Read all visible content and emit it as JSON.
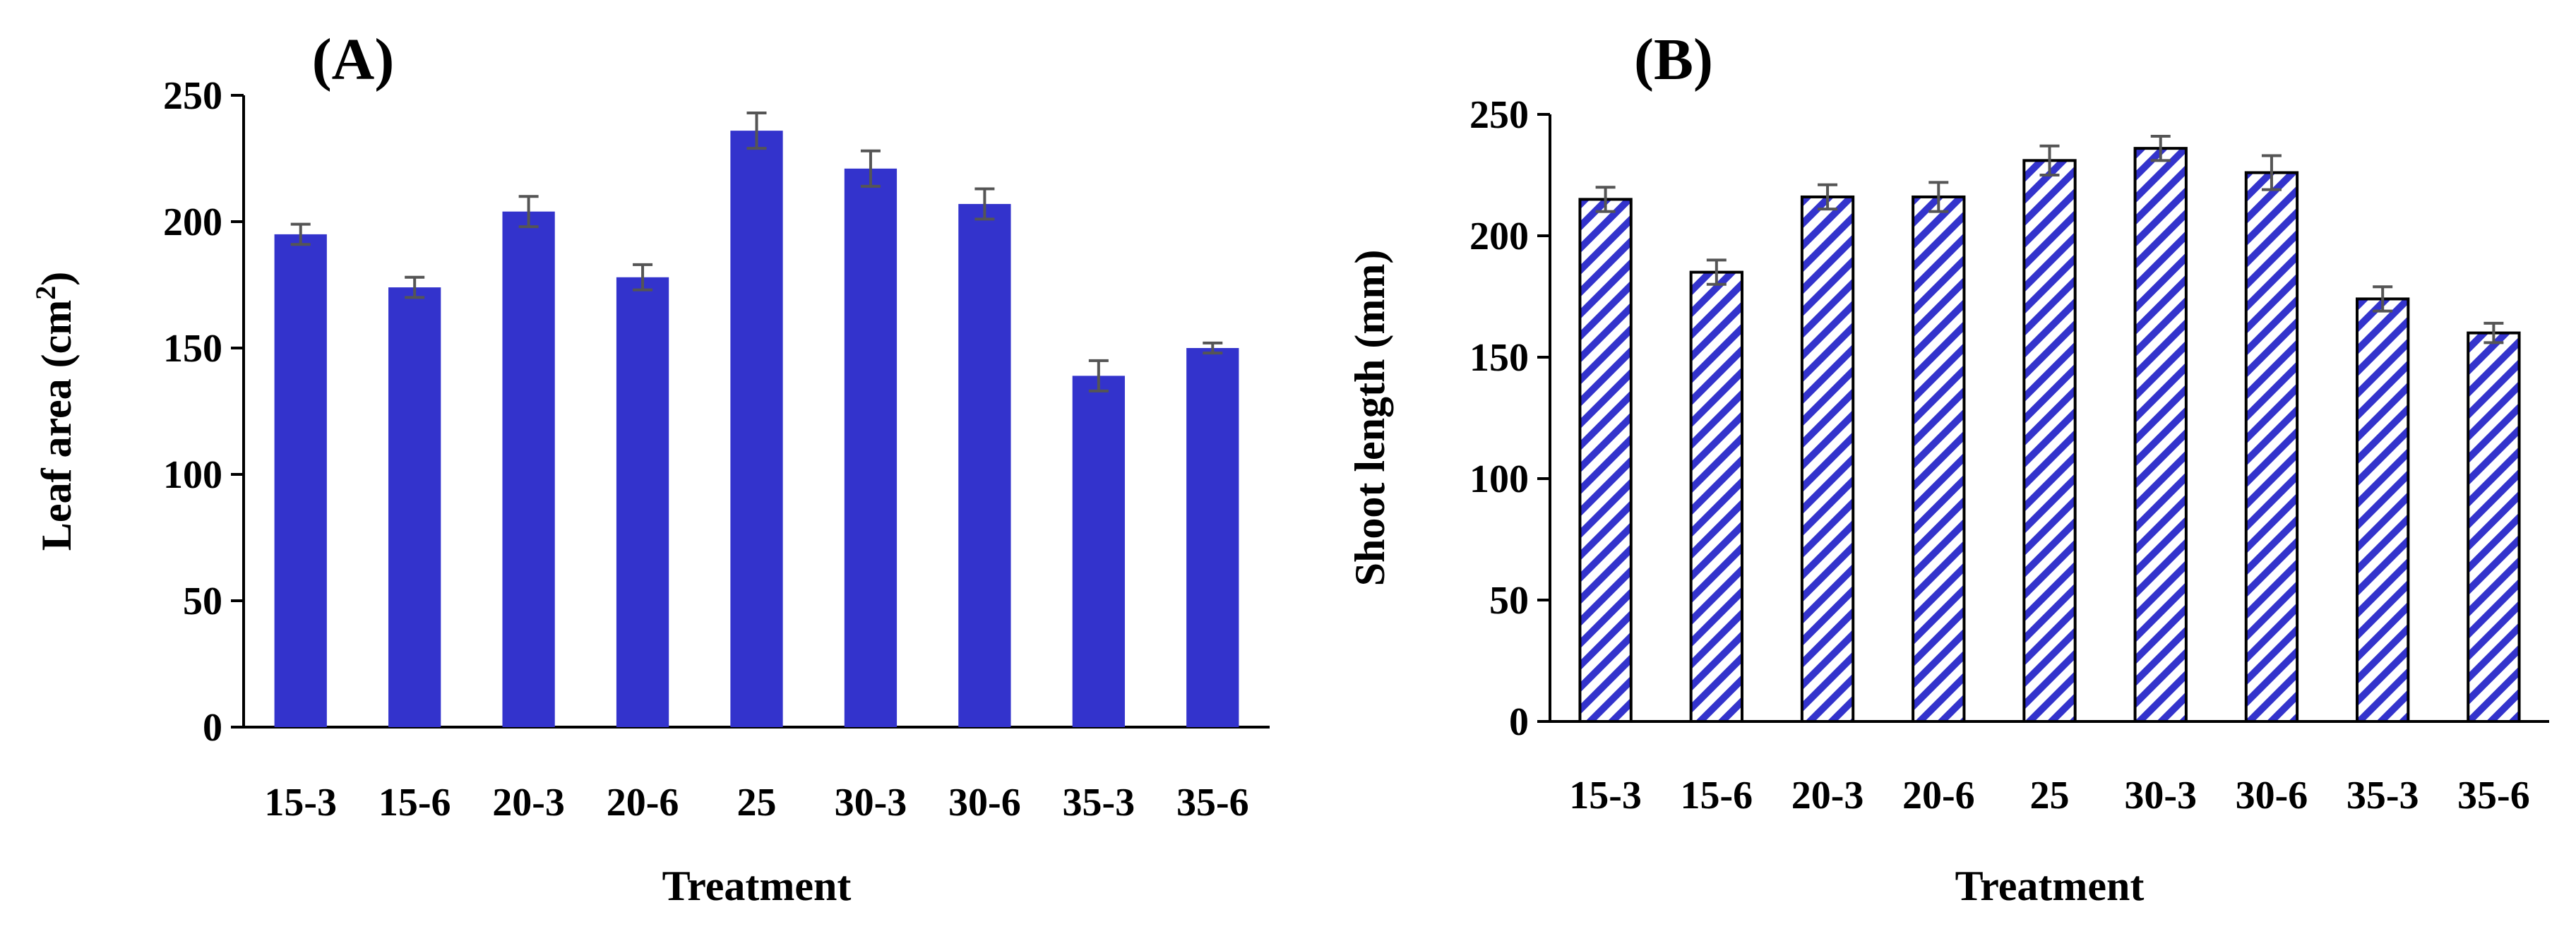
{
  "chart_data": [
    {
      "type": "bar",
      "panel_label": "(A)",
      "title": "",
      "xlabel": "Treatment",
      "ylabel_main": "Leaf area (cm",
      "ylabel_sup": "2",
      "ylabel_end": ")",
      "ylim": [
        0,
        250
      ],
      "yticks": [
        0,
        50,
        100,
        150,
        200,
        250
      ],
      "grid": false,
      "fill_style": "solid",
      "color": "#3333cc",
      "categories": [
        "15-3",
        "15-6",
        "20-3",
        "20-6",
        "25",
        "30-3",
        "30-6",
        "35-3",
        "35-6"
      ],
      "values": [
        195,
        174,
        204,
        178,
        236,
        221,
        207,
        139,
        150
      ],
      "errors": [
        4,
        4,
        6,
        5,
        7,
        7,
        6,
        6,
        2
      ]
    },
    {
      "type": "bar",
      "panel_label": "(B)",
      "title": "",
      "xlabel": "Treatment",
      "ylabel_main": "Shoot length (mm)",
      "ylabel_sup": "",
      "ylabel_end": "",
      "ylim": [
        0,
        250
      ],
      "yticks": [
        0,
        50,
        100,
        150,
        200,
        250
      ],
      "grid": false,
      "fill_style": "hatched",
      "color": "#3333cc",
      "categories": [
        "15-3",
        "15-6",
        "20-3",
        "20-6",
        "25",
        "30-3",
        "30-6",
        "35-3",
        "35-6"
      ],
      "values": [
        215,
        185,
        216,
        216,
        231,
        236,
        226,
        174,
        160
      ],
      "errors": [
        5,
        5,
        5,
        6,
        6,
        5,
        7,
        5,
        4
      ]
    }
  ]
}
